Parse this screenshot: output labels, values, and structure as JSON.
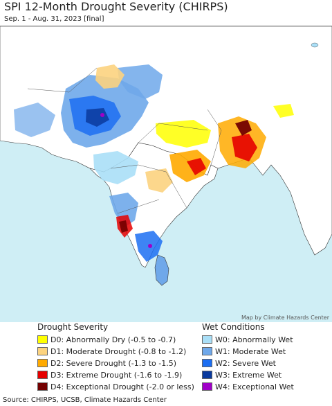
{
  "header": {
    "title": "SPI 12-Month Drought Severity (CHIRPS)",
    "subtitle": "Sep. 1 - Aug. 31, 2023 [final]"
  },
  "map": {
    "credit": "Map by Climate Hazards Center",
    "ocean_color": "#cfeef5",
    "land_color": "#ffffff",
    "outside_land_color": "#ffffff"
  },
  "legend": {
    "drought": {
      "title": "Drought Severity",
      "items": [
        {
          "label": "D0: Abnormally Dry (-0.5 to -0.7)",
          "color": "#ffff00"
        },
        {
          "label": "D1: Moderate Drought (-0.8 to -1.2)",
          "color": "#fcd37f"
        },
        {
          "label": "D2: Severe Drought (-1.3 to -1.5)",
          "color": "#ffaa00"
        },
        {
          "label": "D3: Extreme Drought (-1.6 to -1.9)",
          "color": "#e60000"
        },
        {
          "label": "D4: Exceptional Drought (-2.0 or less)",
          "color": "#730000"
        }
      ]
    },
    "wet": {
      "title": "Wet Conditions",
      "items": [
        {
          "label": "W0: Abnormally Wet",
          "color": "#aadff7"
        },
        {
          "label": "W1: Moderate Wet",
          "color": "#6fa8ea"
        },
        {
          "label": "W2: Severe Wet",
          "color": "#1c6ef2"
        },
        {
          "label": "W3: Extreme Wet",
          "color": "#0a3a9e"
        },
        {
          "label": "W4: Exceptional Wet",
          "color": "#a000c8"
        }
      ]
    }
  },
  "footer": {
    "source": "Source: CHIRPS, UCSB, Climate Hazards Center"
  }
}
